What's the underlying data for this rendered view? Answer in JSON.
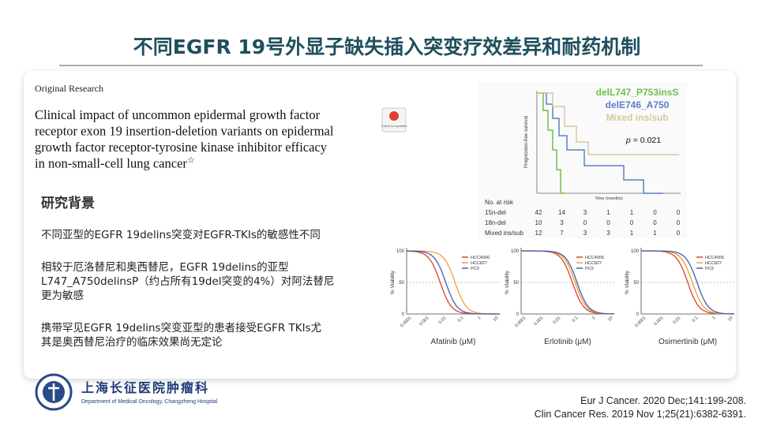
{
  "header": {
    "title": "不同EGFR 19号外显子缺失插入突变疗效差异和耐药机制"
  },
  "paper": {
    "label": "Original Research",
    "title_lines": [
      "Clinical impact of uncommon epidermal growth factor",
      "receptor exon 19 insertion-deletion variants on epidermal",
      "growth factor receptor-tyrosine kinase inhibitor efficacy",
      "in non-small-cell lung cancer"
    ],
    "title_mark": "☆",
    "badge": "Check for updates"
  },
  "background": {
    "heading": "研究背景",
    "paragraphs": [
      [
        "不同亚型的EGFR 19delins突变对EGFR-TKIs的敏感性不同"
      ],
      [
        "相较于厄洛替尼和奥西替尼，EGFR 19delins的亚型",
        "L747_A750delinsP（约占所有19del突变的4%）对阿法替尼",
        "更为敏感"
      ],
      [
        "携带罕见EGFR 19delins突变亚型的患者接受EGFR TKIs尤",
        "其是奥西替尼治疗的临床效果尚无定论"
      ]
    ]
  },
  "survival_figure": {
    "legend": [
      {
        "name": "delL747_P753insS",
        "color": "#6fbf4a"
      },
      {
        "name": "delE746_A750",
        "color": "#5b7fc7"
      },
      {
        "name": "Mixed ins/sub",
        "color": "#d8c99b"
      }
    ],
    "p_label": "p",
    "p_value": "= 0.021",
    "y_label": "Progression-free survival",
    "x_label": "Time (months)",
    "risk_table": {
      "heading": "No. at risk",
      "rows": [
        {
          "label": "15n-del",
          "counts": [
            42,
            14,
            3,
            1,
            1,
            0,
            0
          ]
        },
        {
          "label": "18n-del",
          "counts": [
            10,
            3,
            0,
            0,
            0,
            0,
            0
          ]
        },
        {
          "label": "Mixed ins/sub",
          "counts": [
            12,
            7,
            3,
            3,
            1,
            1,
            0
          ]
        }
      ]
    }
  },
  "viability_figures": {
    "y_label": "% Viability",
    "y_ticks": [
      100,
      50,
      0
    ],
    "x_ticks": [
      "0.0001",
      "0.001",
      "0.01",
      "0.1",
      "1",
      "10"
    ],
    "legend": [
      {
        "name": "HCC4006",
        "color": "#e0412f"
      },
      {
        "name": "HCC827",
        "color": "#f0a030"
      },
      {
        "name": "PC9",
        "color": "#3b5fb5"
      }
    ],
    "panels": [
      {
        "x_label": "Afatinib (μM)"
      },
      {
        "x_label": "Erlotinib (μM)"
      },
      {
        "x_label": "Osimertinib (μM)"
      }
    ]
  },
  "footer": {
    "hospital": "上海长征医院肿瘤科",
    "department": "Department of Medical Oncology, Changzheng Hospital",
    "references": [
      "Eur J Cancer. 2020 Dec;141:199-208.",
      "Clin Cancer Res. 2019 Nov 1;25(21):6382-6391."
    ]
  }
}
